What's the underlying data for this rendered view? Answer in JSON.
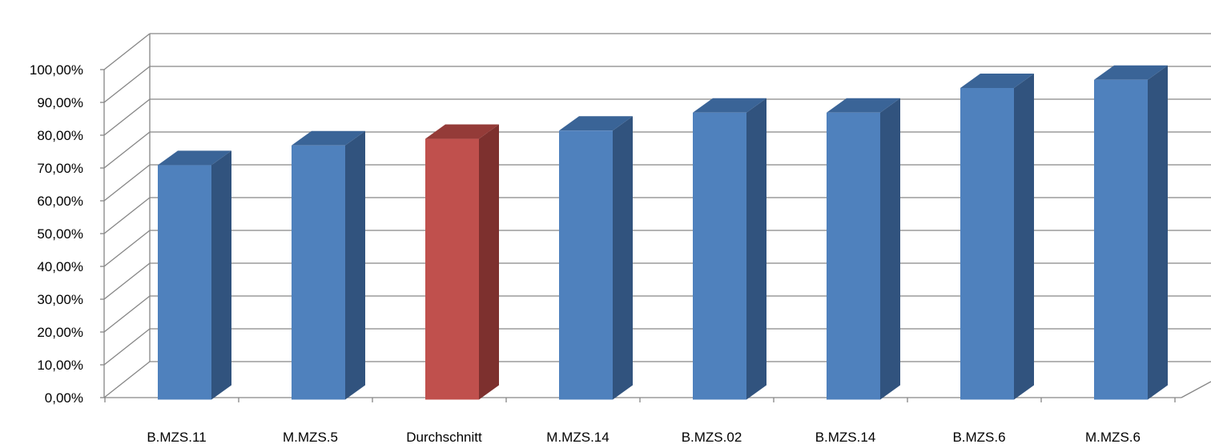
{
  "chart_data": {
    "type": "bar",
    "categories": [
      "B.MZS.11",
      "M.MZS.5",
      "Durchschnitt",
      "M.MZS.14",
      "B.MZS.02",
      "B.MZS.14",
      "B.MZS.6",
      "M.MZS.6"
    ],
    "values": [
      71.5,
      77.5,
      79.5,
      82.0,
      87.5,
      87.5,
      95.0,
      97.5
    ],
    "highlight_category": "Durchschnitt",
    "ylim": [
      0,
      100
    ],
    "y_ticks": [
      0,
      10,
      20,
      30,
      40,
      50,
      60,
      70,
      80,
      90,
      100
    ],
    "y_tick_labels": [
      "0,00%",
      "10,00%",
      "20,00%",
      "30,00%",
      "40,00%",
      "50,00%",
      "60,00%",
      "70,00%",
      "80,00%",
      "90,00%",
      "100,00%"
    ],
    "title": "",
    "xlabel": "",
    "ylabel": "",
    "grid": true,
    "style": "3d-column",
    "colors": {
      "bar_front": "#4F81BD",
      "bar_side": "#31537E",
      "bar_top": "#3A6497",
      "highlight_front": "#C0504D",
      "highlight_side": "#7D302E",
      "highlight_top": "#943B38",
      "grid": "#868686"
    }
  }
}
